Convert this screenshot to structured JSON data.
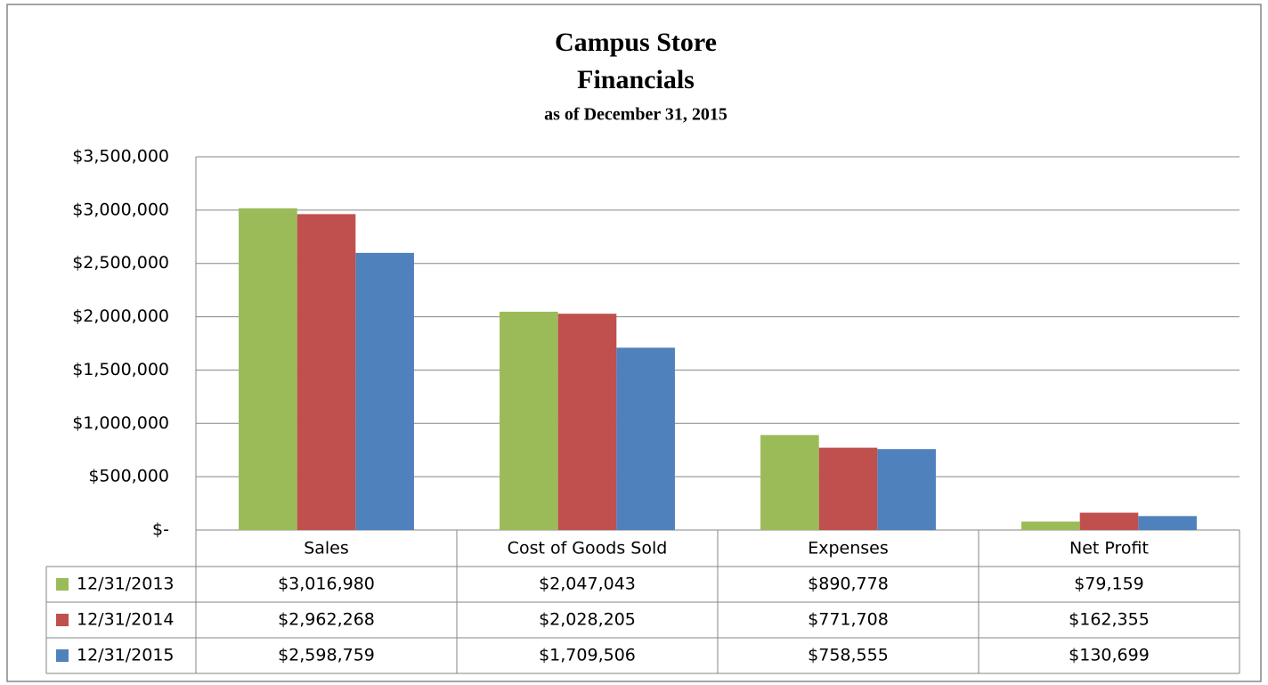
{
  "chart_data": {
    "type": "bar",
    "title": [
      "Campus Store",
      "Financials"
    ],
    "subtitle": "as of December 31, 2015",
    "categories": [
      "Sales",
      "Cost of Goods Sold",
      "Expenses",
      "Net Profit"
    ],
    "series": [
      {
        "name": "12/31/2013",
        "color": "#9bbb59",
        "values": [
          3016980,
          2047043,
          890778,
          79159
        ],
        "value_labels": [
          "$3,016,980",
          "$2,047,043",
          "$890,778",
          "$79,159"
        ]
      },
      {
        "name": "12/31/2014",
        "color": "#c0504d",
        "values": [
          2962268,
          2028205,
          771708,
          162355
        ],
        "value_labels": [
          "$2,962,268",
          "$2,028,205",
          "$771,708",
          "$162,355"
        ]
      },
      {
        "name": "12/31/2015",
        "color": "#4f81bd",
        "values": [
          2598759,
          1709506,
          758555,
          130699
        ],
        "value_labels": [
          "$2,598,759",
          "$1,709,506",
          "$758,555",
          "$130,699"
        ]
      }
    ],
    "ylim": [
      0,
      3500000
    ],
    "yticks": [
      {
        "value": 0,
        "label": "$-"
      },
      {
        "value": 500000,
        "label": "$500,000"
      },
      {
        "value": 1000000,
        "label": "$1,000,000"
      },
      {
        "value": 1500000,
        "label": "$1,500,000"
      },
      {
        "value": 2000000,
        "label": "$2,000,000"
      },
      {
        "value": 2500000,
        "label": "$2,500,000"
      },
      {
        "value": 3000000,
        "label": "$3,000,000"
      },
      {
        "value": 3500000,
        "label": "$3,500,000"
      }
    ],
    "grid": true
  }
}
